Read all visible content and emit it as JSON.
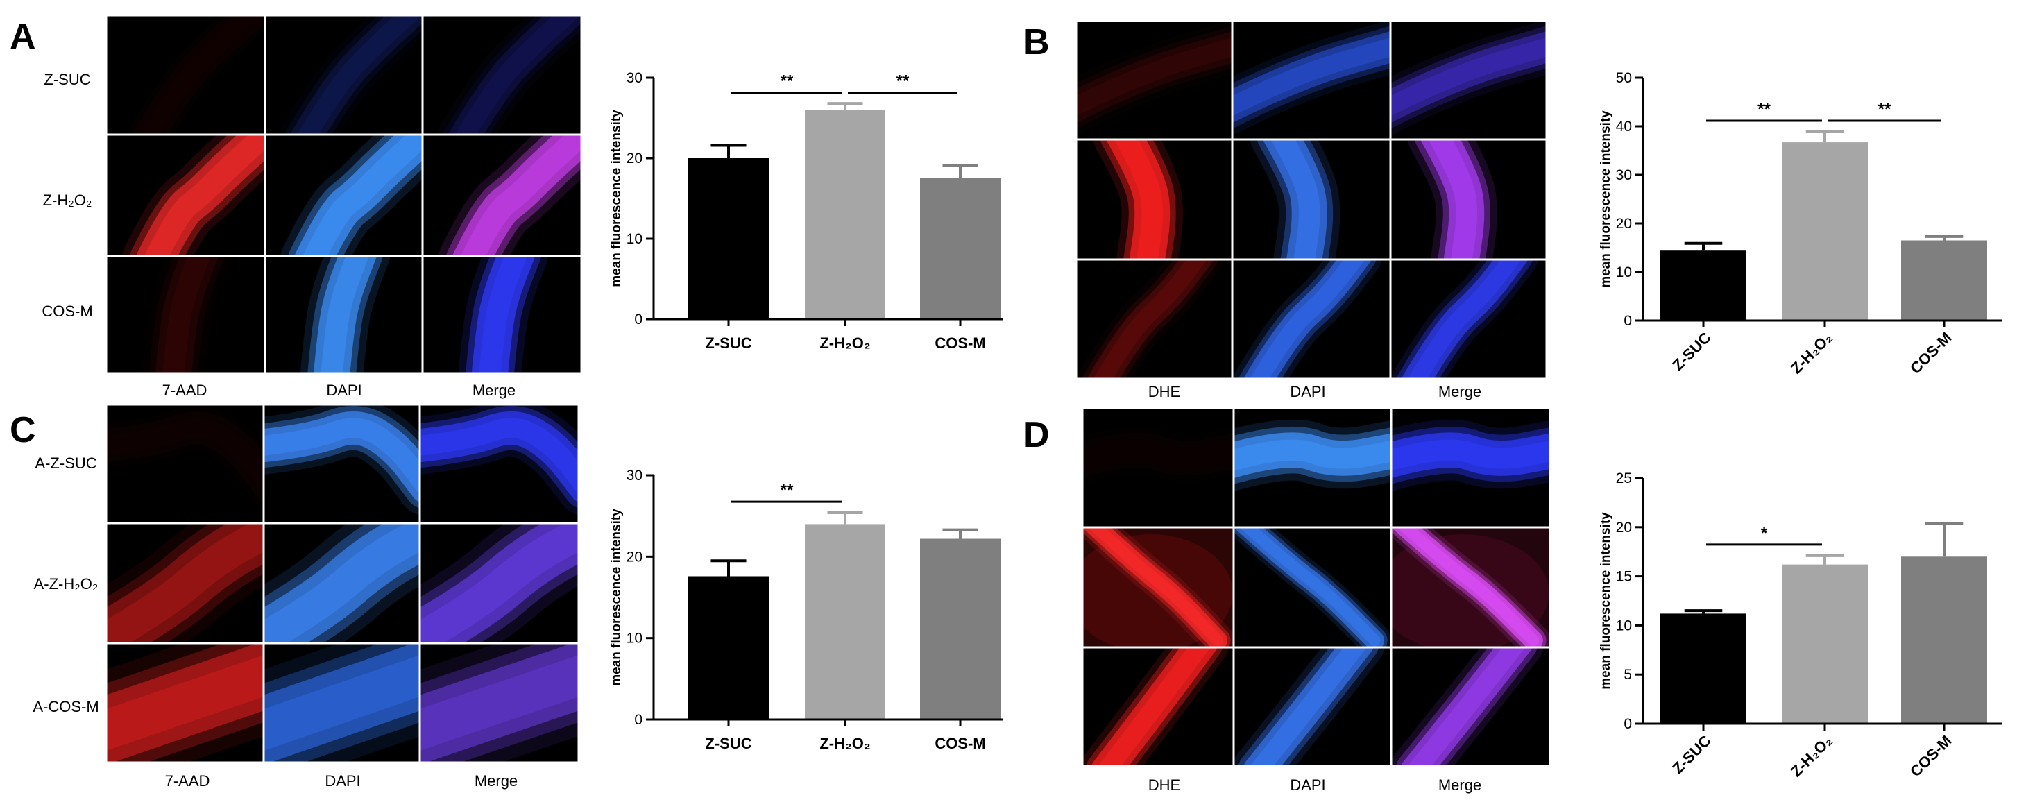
{
  "panels": [
    {
      "label": "A",
      "row_labels": [
        "Z-SUC",
        "Z-H₂O₂",
        "COS-M"
      ],
      "col_labels": [
        "7-AAD",
        "DAPI",
        "Merge"
      ],
      "cells": [
        [
          {
            "tint": "#b81818",
            "intensity": 0.06
          },
          {
            "tint": "#2a44d0",
            "intensity": 0.22
          },
          {
            "tint": "#3034d8",
            "intensity": 0.22
          }
        ],
        [
          {
            "tint": "#ff2d2d",
            "intensity": 0.8
          },
          {
            "tint": "#3f94ff",
            "intensity": 0.95
          },
          {
            "tint": "#cc40f0",
            "intensity": 0.9
          }
        ],
        [
          {
            "tint": "#c01818",
            "intensity": 0.14
          },
          {
            "tint": "#3f94ff",
            "intensity": 0.9
          },
          {
            "tint": "#2f3cff",
            "intensity": 0.95
          }
        ]
      ]
    },
    {
      "label": "B",
      "row_labels": [],
      "col_labels": [
        "DHE",
        "DAPI",
        "Merge"
      ],
      "cells": [
        [
          {
            "tint": "#b81818",
            "intensity": 0.16
          },
          {
            "tint": "#3060ff",
            "intensity": 0.6
          },
          {
            "tint": "#4a35e0",
            "intensity": 0.6
          }
        ],
        [
          {
            "tint": "#ff2020",
            "intensity": 0.95
          },
          {
            "tint": "#3a7cff",
            "intensity": 0.85
          },
          {
            "tint": "#b040ff",
            "intensity": 0.9
          }
        ],
        [
          {
            "tint": "#c01818",
            "intensity": 0.3
          },
          {
            "tint": "#3570ff",
            "intensity": 0.8
          },
          {
            "tint": "#3340ff",
            "intensity": 0.85
          }
        ]
      ]
    },
    {
      "label": "C",
      "row_labels": [
        "A-Z-SUC",
        "A-Z-H₂O₂",
        "A-COS-M"
      ],
      "col_labels": [
        "7-AAD",
        "DAPI",
        "Merge"
      ],
      "cells": [
        [
          {
            "tint": "#a01515",
            "intensity": 0.06
          },
          {
            "tint": "#3f8cff",
            "intensity": 0.9
          },
          {
            "tint": "#2f3cff",
            "intensity": 0.9
          }
        ],
        [
          {
            "tint": "#e02020",
            "intensity": 0.5
          },
          {
            "tint": "#3f8cff",
            "intensity": 0.85
          },
          {
            "tint": "#6a40f0",
            "intensity": 0.8
          }
        ],
        [
          {
            "tint": "#e42020",
            "intensity": 0.7
          },
          {
            "tint": "#3070f0",
            "intensity": 0.75
          },
          {
            "tint": "#6a3ce0",
            "intensity": 0.75
          }
        ]
      ]
    },
    {
      "label": "D",
      "row_labels": [],
      "col_labels": [
        "DHE",
        "DAPI",
        "Merge"
      ],
      "cells": [
        [
          {
            "tint": "#a01515",
            "intensity": 0.04
          },
          {
            "tint": "#3f94ff",
            "intensity": 0.95
          },
          {
            "tint": "#2e3cff",
            "intensity": 0.95
          }
        ],
        [
          {
            "tint": "#ff2a2a",
            "intensity": 0.95,
            "bg": "#4a0808"
          },
          {
            "tint": "#3a80ff",
            "intensity": 0.85
          },
          {
            "tint": "#e050ff",
            "intensity": 0.95,
            "bg": "#3a0818"
          }
        ],
        [
          {
            "tint": "#ff2222",
            "intensity": 0.9
          },
          {
            "tint": "#3a7cff",
            "intensity": 0.85
          },
          {
            "tint": "#a040ff",
            "intensity": 0.85
          }
        ]
      ]
    }
  ],
  "chart_data": [
    {
      "type": "bar",
      "categories": [
        "Z-SUC",
        "Z-H₂O₂",
        "COS-M"
      ],
      "values": [
        20.0,
        26.0,
        17.5
      ],
      "errors": [
        1.6,
        0.8,
        1.6
      ],
      "ylabel": "mean fluorescence intensity",
      "ylim": [
        0,
        30
      ],
      "yticks": [
        0,
        10,
        20,
        30
      ],
      "colors": [
        "#000000",
        "#a6a6a6",
        "#7f7f7f"
      ],
      "significance": [
        {
          "between": [
            0,
            1
          ],
          "label": "**"
        },
        {
          "between": [
            1,
            2
          ],
          "label": "**"
        }
      ]
    },
    {
      "type": "bar",
      "categories": [
        "Z-SUC",
        "Z-H₂O₂",
        "COS-M"
      ],
      "values": [
        14.4,
        36.7,
        16.5
      ],
      "errors": [
        1.5,
        2.2,
        0.8
      ],
      "ylabel": "mean fluorescence intensity",
      "ylim": [
        0,
        50
      ],
      "yticks": [
        0,
        10,
        20,
        30,
        40,
        50
      ],
      "colors": [
        "#000000",
        "#a6a6a6",
        "#7f7f7f"
      ],
      "significance": [
        {
          "between": [
            0,
            1
          ],
          "label": "**"
        },
        {
          "between": [
            1,
            2
          ],
          "label": "**"
        }
      ]
    },
    {
      "type": "bar",
      "categories": [
        "Z-SUC",
        "Z-H₂O₂",
        "COS-M"
      ],
      "values": [
        17.6,
        24.0,
        22.2
      ],
      "errors": [
        1.9,
        1.4,
        1.1
      ],
      "ylabel": "mean fluorescence intensity",
      "ylim": [
        0,
        30
      ],
      "yticks": [
        0,
        10,
        20,
        30
      ],
      "colors": [
        "#000000",
        "#a6a6a6",
        "#7f7f7f"
      ],
      "significance": [
        {
          "between": [
            0,
            1
          ],
          "label": "**"
        }
      ]
    },
    {
      "type": "bar",
      "categories": [
        "Z-SUC",
        "Z-H₂O₂",
        "COS-M"
      ],
      "values": [
        11.2,
        16.2,
        17.0
      ],
      "errors": [
        0.3,
        0.9,
        3.4
      ],
      "ylabel": "mean fluorescence intensity",
      "ylim": [
        0,
        25
      ],
      "yticks": [
        0,
        5,
        10,
        15,
        20,
        25
      ],
      "colors": [
        "#000000",
        "#a6a6a6",
        "#7f7f7f"
      ],
      "significance": [
        {
          "between": [
            0,
            1
          ],
          "label": "*"
        }
      ]
    }
  ]
}
